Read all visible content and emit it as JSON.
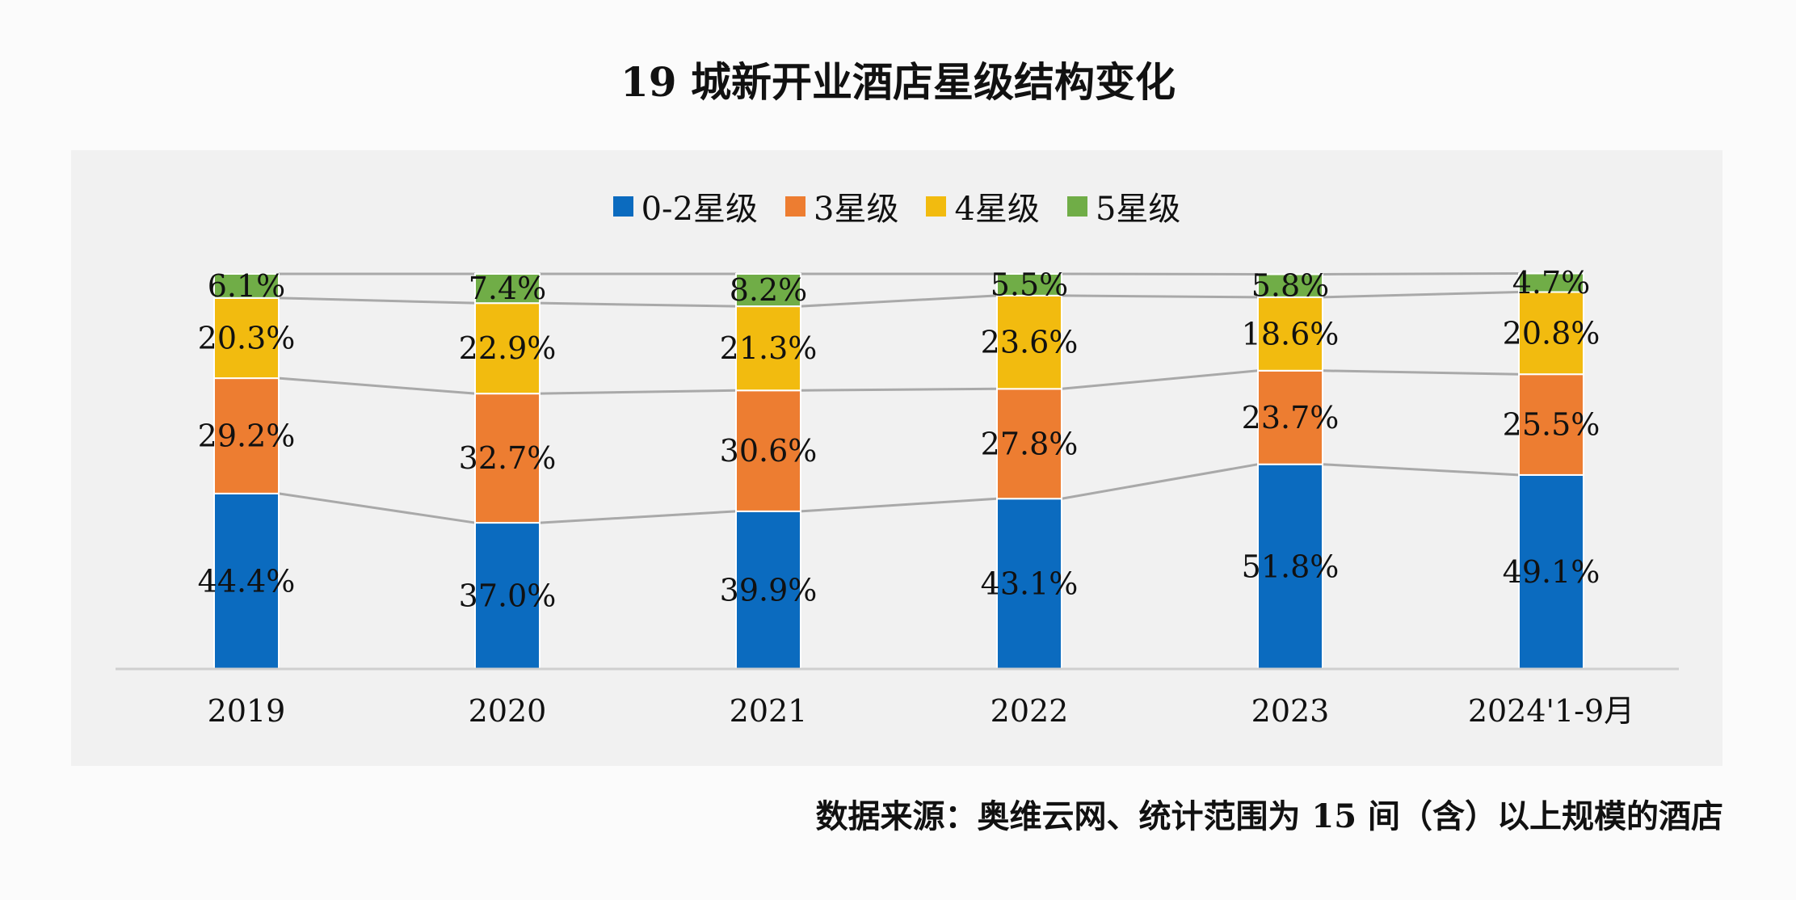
{
  "title": "19 城新开业酒店星级结构变化",
  "source": "数据来源：奥维云网、统计范围为 15 间（含）以上规模的酒店",
  "chart_data": {
    "type": "bar",
    "stacked": true,
    "percent": true,
    "legend_position": "top",
    "grid": false,
    "connector_lines": true,
    "ylim": [
      0,
      100
    ],
    "categories": [
      "2019",
      "2020",
      "2021",
      "2022",
      "2023",
      "2024'1-9月"
    ],
    "series": [
      {
        "name": "0-2星级",
        "color": "#0b6bbf",
        "values": [
          44.4,
          37.0,
          39.9,
          43.1,
          51.8,
          49.1
        ],
        "labels": [
          "44.4%",
          "37.0%",
          "39.9%",
          "43.1%",
          "51.8%",
          "49.1%"
        ]
      },
      {
        "name": "3星级",
        "color": "#ed7d31",
        "values": [
          29.2,
          32.7,
          30.6,
          27.8,
          23.7,
          25.5
        ],
        "labels": [
          "29.2%",
          "32.7%",
          "30.6%",
          "27.8%",
          "23.7%",
          "25.5%"
        ]
      },
      {
        "name": "4星级",
        "color": "#f2bb0f",
        "values": [
          20.3,
          22.9,
          21.3,
          23.6,
          18.6,
          20.8
        ],
        "labels": [
          "20.3%",
          "22.9%",
          "21.3%",
          "23.6%",
          "18.6%",
          "20.8%"
        ]
      },
      {
        "name": "5星级",
        "color": "#70ad47",
        "values": [
          6.1,
          7.4,
          8.2,
          5.5,
          5.8,
          4.7
        ],
        "labels": [
          "6.1%",
          "7.4%",
          "8.2%",
          "5.5%",
          "5.8%",
          "4.7%"
        ]
      }
    ]
  }
}
